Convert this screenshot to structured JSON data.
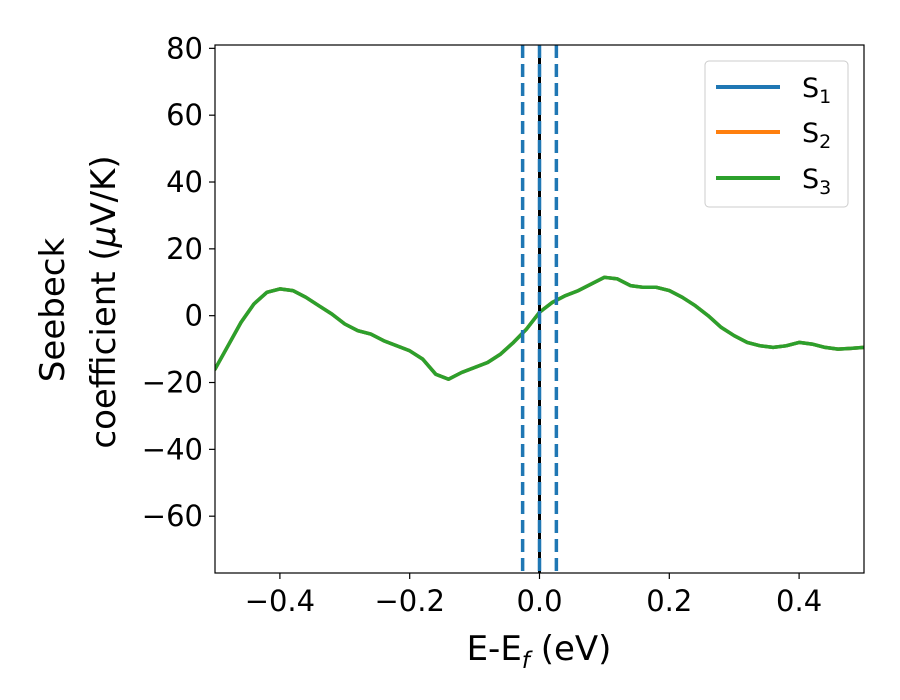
{
  "chart_data": {
    "type": "line",
    "title": "",
    "xlabel": {
      "text": "E-E",
      "sub": "f",
      "unit": " (eV)"
    },
    "ylabel": {
      "line1": "Seebeck",
      "line2": "coefficient  (",
      "mu": "μ",
      "unit": "V/K)"
    },
    "xlim": [
      -0.5,
      0.5
    ],
    "ylim": [
      -77,
      81
    ],
    "xticks": [
      -0.4,
      -0.2,
      0.0,
      0.2,
      0.4
    ],
    "xtick_labels": [
      "−0.4",
      "−0.2",
      "0.0",
      "0.2",
      "0.4"
    ],
    "yticks": [
      80,
      60,
      40,
      20,
      0,
      -20,
      -40,
      -60
    ],
    "ytick_labels": [
      "80",
      "60",
      "40",
      "20",
      "0",
      "−20",
      "−40",
      "−60"
    ],
    "grid": false,
    "legend_position": "top-right",
    "legend": [
      {
        "base": "S",
        "sub": "1",
        "color": "#1f77b4"
      },
      {
        "base": "S",
        "sub": "2",
        "color": "#ff7f0e"
      },
      {
        "base": "S",
        "sub": "3",
        "color": "#2ca02c"
      }
    ],
    "x": [
      -0.5,
      -0.48,
      -0.46,
      -0.44,
      -0.42,
      -0.4,
      -0.38,
      -0.36,
      -0.34,
      -0.32,
      -0.3,
      -0.28,
      -0.26,
      -0.24,
      -0.22,
      -0.2,
      -0.18,
      -0.16,
      -0.14,
      -0.12,
      -0.1,
      -0.08,
      -0.06,
      -0.04,
      -0.02,
      0.0,
      0.02,
      0.04,
      0.06,
      0.08,
      0.1,
      0.12,
      0.14,
      0.16,
      0.18,
      0.2,
      0.22,
      0.24,
      0.26,
      0.28,
      0.3,
      0.32,
      0.34,
      0.36,
      0.38,
      0.4,
      0.42,
      0.44,
      0.46,
      0.48,
      0.5
    ],
    "series": [
      {
        "color": "#1f77b4",
        "values": [
          -16,
          -9,
          -2,
          3.5,
          7,
          8,
          7.5,
          5.5,
          3,
          0.5,
          -2.5,
          -4.5,
          -5.5,
          -7.5,
          -9,
          -10.5,
          -13,
          -17.5,
          -19,
          -17,
          -15.5,
          -14,
          -11.5,
          -8,
          -4,
          1,
          4,
          6,
          7.5,
          9.5,
          11.5,
          11,
          9,
          8.5,
          8.5,
          7.5,
          5.5,
          3,
          0,
          -3.5,
          -6,
          -8,
          -9,
          -9.5,
          -9,
          -8,
          -8.5,
          -9.5,
          -10,
          -9.8,
          -9.5
        ]
      },
      {
        "color": "#ff7f0e",
        "values": [
          -16,
          -9,
          -2,
          3.5,
          7,
          8,
          7.5,
          5.5,
          3,
          0.5,
          -2.5,
          -4.5,
          -5.5,
          -7.5,
          -9,
          -10.5,
          -13,
          -17.5,
          -19,
          -17,
          -15.5,
          -14,
          -11.5,
          -8,
          -4,
          1,
          4,
          6,
          7.5,
          9.5,
          11.5,
          11,
          9,
          8.5,
          8.5,
          7.5,
          5.5,
          3,
          0,
          -3.5,
          -6,
          -8,
          -9,
          -9.5,
          -9,
          -8,
          -8.5,
          -9.5,
          -10,
          -9.8,
          -9.5
        ]
      },
      {
        "color": "#2ca02c",
        "values": [
          -16,
          -9,
          -2,
          3.5,
          7,
          8,
          7.5,
          5.5,
          3,
          0.5,
          -2.5,
          -4.5,
          -5.5,
          -7.5,
          -9,
          -10.5,
          -13,
          -17.5,
          -19,
          -17,
          -15.5,
          -14,
          -11.5,
          -8,
          -4,
          1,
          4,
          6,
          7.5,
          9.5,
          11.5,
          11,
          9,
          8.5,
          8.5,
          7.5,
          5.5,
          3,
          0,
          -3.5,
          -6,
          -8,
          -9,
          -9.5,
          -9,
          -8,
          -8.5,
          -9.5,
          -10,
          -9.8,
          -9.5
        ]
      }
    ],
    "vlines": [
      {
        "x": -0.026,
        "color": "#1f77b4",
        "style": "dashed"
      },
      {
        "x": 0.0,
        "color": "#000000",
        "style": "solid"
      },
      {
        "x": 0.0,
        "color": "#1f77b4",
        "style": "dashed"
      },
      {
        "x": 0.026,
        "color": "#1f77b4",
        "style": "dashed"
      }
    ]
  }
}
